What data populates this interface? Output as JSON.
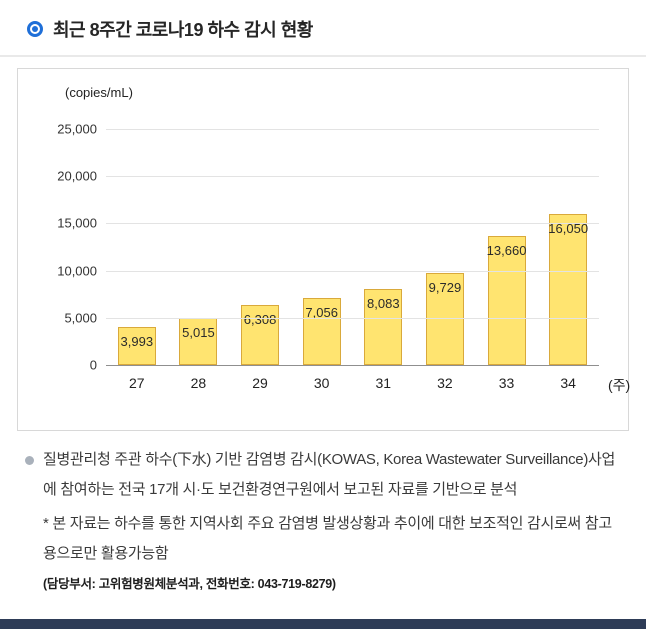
{
  "header": {
    "title": "최근 8주간 코로나19 하수 감시 현황",
    "accent_color": "#1f6fd8"
  },
  "chart_data": {
    "type": "bar",
    "title": "최근 8주간 코로나19 하수 감시 현황",
    "unit_label": "(copies/mL)",
    "ylabel": "(copies/mL)",
    "xlabel": "(주)",
    "x_axis_suffix": "(주)",
    "categories": [
      "27",
      "28",
      "29",
      "30",
      "31",
      "32",
      "33",
      "34"
    ],
    "values": [
      3993,
      5015,
      6308,
      7056,
      8083,
      9729,
      13660,
      16050
    ],
    "value_labels": [
      "3,993",
      "5,015",
      "6,308",
      "7,056",
      "8,083",
      "9,729",
      "13,660",
      "16,050"
    ],
    "y_ticks": [
      "25,000",
      "20,000",
      "15,000",
      "10,000",
      "5,000",
      "0"
    ],
    "ylim": [
      0,
      25000
    ],
    "grid": true,
    "legend": "none",
    "bar_fill": "#ffe470",
    "bar_border": "#d9a93b"
  },
  "notes": {
    "bullet1": "질병관리청 주관 하수(下水) 기반 감염병 감시(KOWAS, Korea Wastewater Surveillance)사업에 참여하는 전국 17개 시·도 보건환경연구원에서 보고된 자료를 기반으로 분석",
    "note2": "* 본 자료는 하수를 통한 지역사회 주요 감염병 발생상황과 추이에 대한 보조적인 감시로써 참고용으로만 활용가능함",
    "contact": "(담당부서: 고위험병원체분석과, 전화번호: 043-719-8279)"
  },
  "footer": {
    "color": "#2e3c57"
  }
}
